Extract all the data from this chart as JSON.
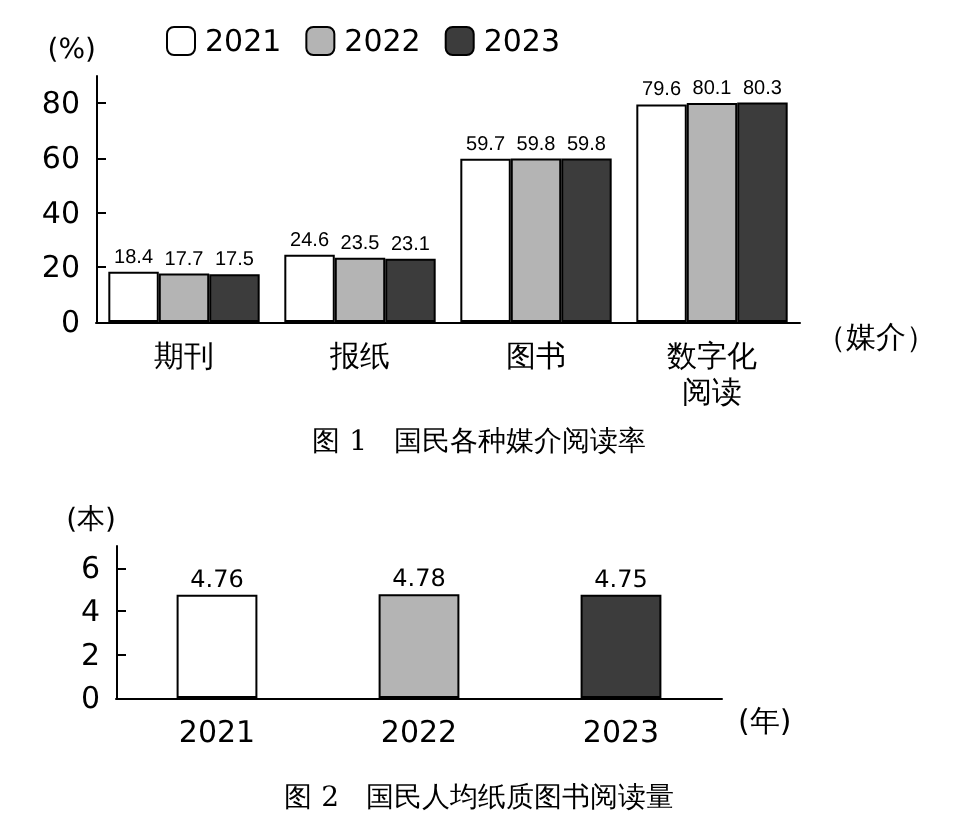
{
  "chart_data": [
    {
      "type": "bar",
      "title": "图 1   国民各种媒介阅读率",
      "ylabel": "(%)",
      "xlabel": "（媒介）",
      "categories": [
        "期刊",
        "报纸",
        "图书",
        "数字化阅读"
      ],
      "series": [
        {
          "name": "2021",
          "color": "#ffffff",
          "values": [
            18.4,
            24.6,
            59.7,
            79.6
          ]
        },
        {
          "name": "2022",
          "color": "#b4b4b4",
          "values": [
            17.7,
            23.5,
            59.8,
            80.1
          ]
        },
        {
          "name": "2023",
          "color": "#3c3c3c",
          "values": [
            17.5,
            23.1,
            59.8,
            80.3
          ]
        }
      ],
      "ylim": [
        0,
        90
      ],
      "yticks": [
        0,
        20,
        40,
        60,
        80
      ],
      "data_labels": true,
      "legend": "top"
    },
    {
      "type": "bar",
      "title": "图 2   国民人均纸质图书阅读量",
      "ylabel": "(本)",
      "xlabel": "(年)",
      "categories": [
        "2021",
        "2022",
        "2023"
      ],
      "values": [
        4.76,
        4.78,
        4.75
      ],
      "colors": [
        "#ffffff",
        "#b4b4b4",
        "#3c3c3c"
      ],
      "ylim": [
        0,
        7
      ],
      "yticks": [
        0,
        2,
        4,
        6
      ],
      "data_labels": true
    }
  ]
}
